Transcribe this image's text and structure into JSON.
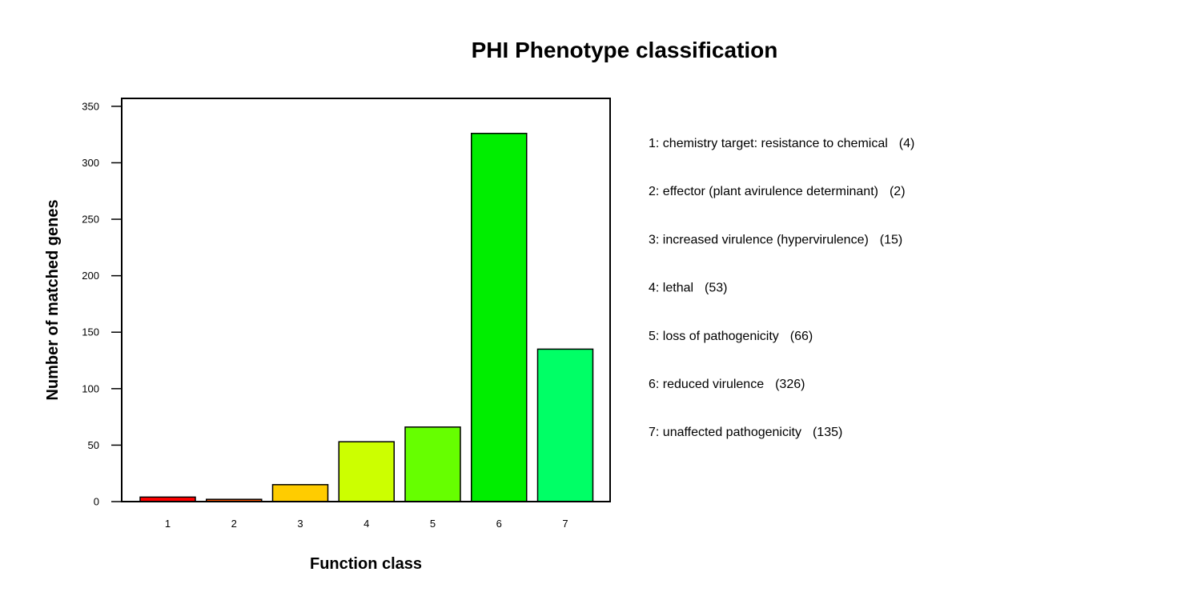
{
  "chart_data": {
    "type": "bar",
    "title": "PHI Phenotype classification",
    "xlabel": "Function class",
    "ylabel": "Number of matched genes",
    "categories": [
      "1",
      "2",
      "3",
      "4",
      "5",
      "6",
      "7"
    ],
    "values": [
      4,
      2,
      15,
      53,
      66,
      326,
      135
    ],
    "colors": [
      "#ff0000",
      "#ff5500",
      "#ffcc00",
      "#ccff00",
      "#66ff00",
      "#00ee00",
      "#00ff66"
    ],
    "ylim": [
      0,
      357
    ],
    "yticks": [
      0,
      50,
      100,
      150,
      200,
      250,
      300,
      350
    ],
    "grid": false,
    "legend_position": "right",
    "legend": [
      {
        "label": "1: chemistry target: resistance to chemical",
        "count": "(4)"
      },
      {
        "label": "2: effector (plant avirulence determinant)",
        "count": "(2)"
      },
      {
        "label": "3: increased virulence (hypervirulence)",
        "count": "(15)"
      },
      {
        "label": "4: lethal",
        "count": "(53)"
      },
      {
        "label": "5: loss of pathogenicity",
        "count": "(66)"
      },
      {
        "label": "6: reduced virulence",
        "count": "(326)"
      },
      {
        "label": "7: unaffected pathogenicity",
        "count": "(135)"
      }
    ]
  }
}
